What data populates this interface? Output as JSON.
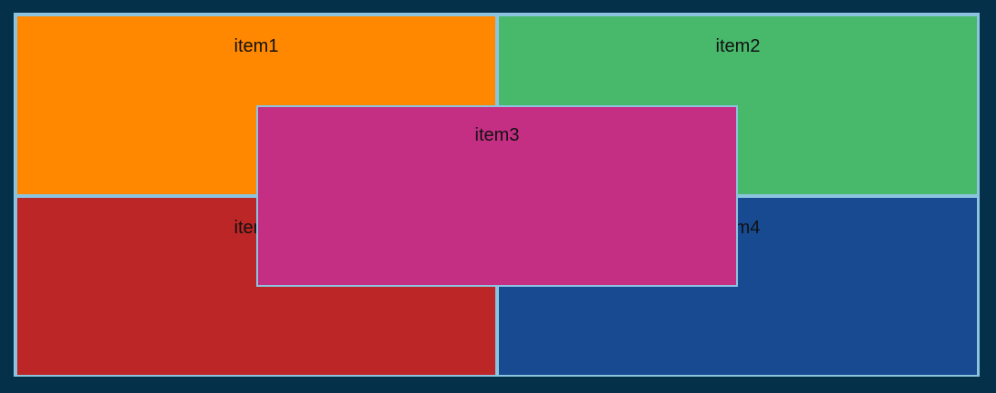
{
  "items": [
    {
      "id": "item1",
      "label": "item1",
      "color": "#ff8800"
    },
    {
      "id": "item2",
      "label": "item2",
      "color": "#48b86a"
    },
    {
      "id": "item3",
      "label": "item3",
      "color": "#c42f84"
    },
    {
      "id": "item4",
      "label": "item4",
      "color": "#174a91"
    },
    {
      "id": "item5",
      "label": "item5",
      "color": "#bc2626"
    }
  ],
  "colors": {
    "background": "#05304a",
    "border": "#8cc4e0"
  }
}
